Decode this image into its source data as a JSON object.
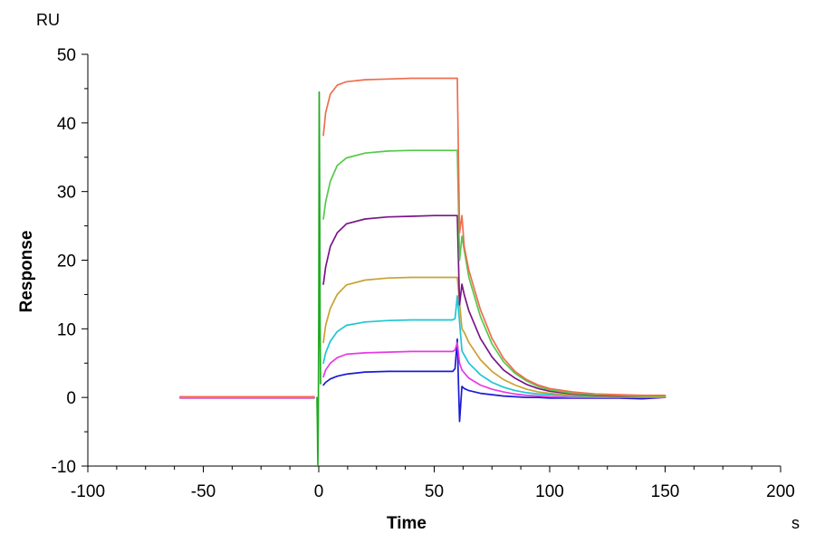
{
  "chart_data": {
    "type": "line",
    "xlabel": "Time",
    "ylabel": "Response",
    "x_unit": "s",
    "y_unit": "RU",
    "xlim": [
      -100,
      200
    ],
    "ylim": [
      -10,
      50
    ],
    "x_ticks": [
      -100,
      -50,
      0,
      50,
      100,
      150,
      200
    ],
    "y_ticks": [
      -10,
      0,
      10,
      20,
      30,
      40,
      50
    ],
    "grid": false,
    "legend": "none",
    "series": [
      {
        "color": "#ee6e4f",
        "baseline": [
          [
            -60,
            0.1
          ],
          [
            -2,
            0.1
          ]
        ],
        "curve": [
          [
            2,
            38.2
          ],
          [
            3,
            41.5
          ],
          [
            5,
            44.2
          ],
          [
            8,
            45.5
          ],
          [
            12,
            46.0
          ],
          [
            20,
            46.3
          ],
          [
            30,
            46.4
          ],
          [
            40,
            46.5
          ],
          [
            50,
            46.5
          ],
          [
            59,
            46.5
          ],
          [
            60,
            46.5
          ],
          [
            61,
            24.0
          ],
          [
            62,
            26.5
          ],
          [
            63,
            22.0
          ],
          [
            65,
            18.5
          ],
          [
            70,
            12.8
          ],
          [
            75,
            8.6
          ],
          [
            80,
            5.7
          ],
          [
            85,
            3.8
          ],
          [
            90,
            2.6
          ],
          [
            95,
            1.8
          ],
          [
            100,
            1.3
          ],
          [
            110,
            0.8
          ],
          [
            120,
            0.5
          ],
          [
            130,
            0.4
          ],
          [
            140,
            0.3
          ],
          [
            150,
            0.3
          ]
        ]
      },
      {
        "color": "#55c94a",
        "baseline": [
          [
            -60,
            0.0
          ],
          [
            -2,
            0.0
          ]
        ],
        "curve": [
          [
            2,
            26.0
          ],
          [
            3,
            28.5
          ],
          [
            5,
            31.5
          ],
          [
            8,
            33.8
          ],
          [
            12,
            34.9
          ],
          [
            20,
            35.6
          ],
          [
            30,
            35.9
          ],
          [
            40,
            36.0
          ],
          [
            50,
            36.0
          ],
          [
            59,
            36.0
          ],
          [
            60,
            36.0
          ],
          [
            61,
            20.0
          ],
          [
            62,
            23.5
          ],
          [
            63,
            21.5
          ],
          [
            65,
            17.5
          ],
          [
            70,
            11.8
          ],
          [
            75,
            7.8
          ],
          [
            80,
            5.2
          ],
          [
            85,
            3.5
          ],
          [
            90,
            2.4
          ],
          [
            95,
            1.6
          ],
          [
            100,
            1.1
          ],
          [
            110,
            0.6
          ],
          [
            120,
            0.4
          ],
          [
            130,
            0.3
          ],
          [
            140,
            0.2
          ],
          [
            150,
            0.2
          ]
        ]
      },
      {
        "color": "#7a1689",
        "baseline": [
          [
            -60,
            0.0
          ],
          [
            -2,
            0.0
          ]
        ],
        "curve": [
          [
            2,
            16.5
          ],
          [
            3,
            19.0
          ],
          [
            5,
            22.0
          ],
          [
            8,
            24.0
          ],
          [
            12,
            25.3
          ],
          [
            20,
            26.0
          ],
          [
            30,
            26.3
          ],
          [
            40,
            26.4
          ],
          [
            50,
            26.5
          ],
          [
            59,
            26.5
          ],
          [
            60,
            26.5
          ],
          [
            61,
            13.5
          ],
          [
            62,
            16.5
          ],
          [
            63,
            15.0
          ],
          [
            65,
            12.6
          ],
          [
            70,
            8.6
          ],
          [
            75,
            5.9
          ],
          [
            80,
            4.0
          ],
          [
            85,
            2.8
          ],
          [
            90,
            1.9
          ],
          [
            95,
            1.3
          ],
          [
            100,
            0.9
          ],
          [
            110,
            0.5
          ],
          [
            120,
            0.3
          ],
          [
            130,
            0.2
          ],
          [
            140,
            0.2
          ],
          [
            150,
            0.2
          ]
        ]
      },
      {
        "color": "#c9a232",
        "baseline": [
          [
            -60,
            0.0
          ],
          [
            -2,
            0.0
          ]
        ],
        "curve": [
          [
            2,
            8.0
          ],
          [
            3,
            10.5
          ],
          [
            5,
            13.0
          ],
          [
            8,
            15.0
          ],
          [
            12,
            16.4
          ],
          [
            20,
            17.1
          ],
          [
            30,
            17.4
          ],
          [
            40,
            17.5
          ],
          [
            50,
            17.5
          ],
          [
            59,
            17.5
          ],
          [
            60,
            17.5
          ],
          [
            62,
            10.0
          ],
          [
            63,
            9.5
          ],
          [
            65,
            8.0
          ],
          [
            70,
            5.5
          ],
          [
            75,
            3.8
          ],
          [
            80,
            2.6
          ],
          [
            85,
            1.8
          ],
          [
            90,
            1.2
          ],
          [
            95,
            0.8
          ],
          [
            100,
            0.6
          ],
          [
            110,
            0.3
          ],
          [
            120,
            0.2
          ],
          [
            130,
            0.1
          ],
          [
            140,
            0.1
          ],
          [
            150,
            0.1
          ]
        ]
      },
      {
        "color": "#1ec6d3",
        "baseline": [
          [
            -60,
            0.0
          ],
          [
            -2,
            0.0
          ]
        ],
        "curve": [
          [
            2,
            5.0
          ],
          [
            3,
            6.5
          ],
          [
            5,
            8.2
          ],
          [
            8,
            9.6
          ],
          [
            12,
            10.5
          ],
          [
            20,
            11.0
          ],
          [
            30,
            11.2
          ],
          [
            40,
            11.3
          ],
          [
            50,
            11.3
          ],
          [
            58,
            11.3
          ],
          [
            59,
            11.5
          ],
          [
            60,
            14.8
          ],
          [
            61,
            11.0
          ],
          [
            62,
            6.8
          ],
          [
            63,
            6.2
          ],
          [
            65,
            5.0
          ],
          [
            70,
            3.3
          ],
          [
            75,
            2.2
          ],
          [
            80,
            1.5
          ],
          [
            85,
            1.0
          ],
          [
            90,
            0.7
          ],
          [
            95,
            0.5
          ],
          [
            100,
            0.4
          ],
          [
            110,
            0.2
          ],
          [
            120,
            0.1
          ],
          [
            130,
            0.1
          ],
          [
            140,
            0.1
          ],
          [
            150,
            0.1
          ]
        ]
      },
      {
        "color": "#e53ae6",
        "baseline": [
          [
            -60,
            -0.1
          ],
          [
            -2,
            -0.1
          ]
        ],
        "curve": [
          [
            2,
            3.0
          ],
          [
            3,
            4.0
          ],
          [
            5,
            5.0
          ],
          [
            8,
            5.8
          ],
          [
            12,
            6.3
          ],
          [
            20,
            6.5
          ],
          [
            30,
            6.6
          ],
          [
            40,
            6.7
          ],
          [
            50,
            6.7
          ],
          [
            58,
            6.7
          ],
          [
            59,
            6.9
          ],
          [
            60,
            8.0
          ],
          [
            61,
            5.0
          ],
          [
            62,
            4.0
          ],
          [
            63,
            3.6
          ],
          [
            65,
            2.8
          ],
          [
            70,
            1.8
          ],
          [
            75,
            1.2
          ],
          [
            80,
            0.8
          ],
          [
            85,
            0.5
          ],
          [
            90,
            0.3
          ],
          [
            95,
            0.2
          ],
          [
            100,
            0.1
          ],
          [
            110,
            0.0
          ],
          [
            120,
            0.0
          ],
          [
            130,
            0.0
          ],
          [
            140,
            0.0
          ],
          [
            150,
            0.0
          ]
        ]
      },
      {
        "color": "#1a1ad6",
        "baseline": [
          [
            -60,
            0.0
          ],
          [
            -2,
            0.0
          ]
        ],
        "curve": [
          [
            2,
            1.8
          ],
          [
            3,
            2.2
          ],
          [
            5,
            2.7
          ],
          [
            8,
            3.1
          ],
          [
            12,
            3.4
          ],
          [
            20,
            3.7
          ],
          [
            30,
            3.8
          ],
          [
            40,
            3.8
          ],
          [
            50,
            3.8
          ],
          [
            58,
            3.8
          ],
          [
            59,
            4.2
          ],
          [
            60,
            8.5
          ],
          [
            60.5,
            2.0
          ],
          [
            61,
            -3.5
          ],
          [
            62,
            1.6
          ],
          [
            63,
            1.3
          ],
          [
            65,
            1.0
          ],
          [
            70,
            0.6
          ],
          [
            75,
            0.4
          ],
          [
            80,
            0.2
          ],
          [
            85,
            0.1
          ],
          [
            90,
            0.0
          ],
          [
            95,
            0.0
          ],
          [
            100,
            -0.1
          ],
          [
            110,
            -0.1
          ],
          [
            120,
            -0.1
          ],
          [
            130,
            -0.1
          ],
          [
            140,
            -0.2
          ],
          [
            150,
            0.0
          ]
        ]
      }
    ]
  },
  "injection_artifact": {
    "color": "#22aa22",
    "points": [
      [
        -0.8,
        0.0
      ],
      [
        -0.6,
        -4.0
      ],
      [
        -0.4,
        -9.8
      ],
      [
        -0.2,
        -3.0
      ],
      [
        0.0,
        12.0
      ],
      [
        0.2,
        44.5
      ],
      [
        0.4,
        30.0
      ],
      [
        0.6,
        10.0
      ],
      [
        0.8,
        2.0
      ]
    ]
  }
}
